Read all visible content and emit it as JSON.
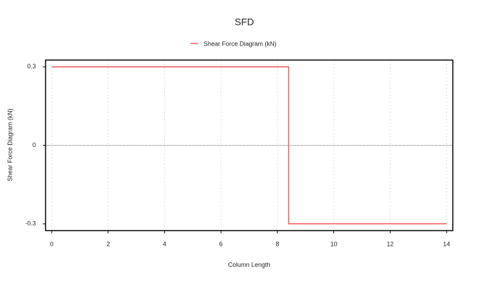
{
  "chart_data": {
    "type": "line",
    "title": "SFD",
    "xlabel": "Column Length",
    "ylabel": "Shear Force Diagram (kN)",
    "x": [
      0,
      8.4,
      8.4,
      14
    ],
    "series": [
      {
        "name": "Shear Force Diagram (kN)",
        "color": "#e8352f",
        "values": [
          0.3,
          0.3,
          -0.3,
          -0.3
        ]
      }
    ],
    "xlim": [
      -0.22,
      14.22
    ],
    "ylim": [
      -0.326,
      0.326
    ],
    "xticks": [
      0,
      2,
      4,
      6,
      8,
      10,
      12,
      14
    ],
    "yticks": [
      -0.3,
      0,
      0.3
    ],
    "grid": true,
    "reference_line": 0,
    "legend": "top"
  }
}
